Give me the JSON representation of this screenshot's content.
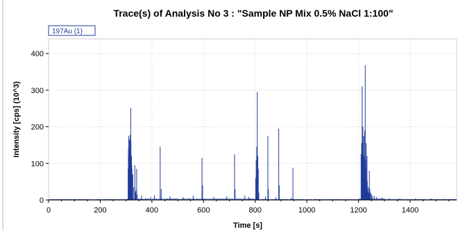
{
  "chart_data": {
    "type": "line",
    "title": "Trace(s) of Analysis No 3 : \"Sample NP Mix 0.5% NaCl 1:100\"",
    "xlabel": "Time [s]",
    "ylabel": "Intensity [cps] (10^3)",
    "xlim": [
      0,
      1580
    ],
    "ylim": [
      0,
      440
    ],
    "xticks": [
      0,
      200,
      400,
      600,
      800,
      1000,
      1200,
      1400
    ],
    "yticks": [
      0,
      100,
      200,
      300,
      400
    ],
    "grid": true,
    "legend_position": "top-left",
    "series_color": "#1f3c9a",
    "series": [
      {
        "name": "197Au (1)",
        "x": [
          308,
          309,
          310,
          311,
          312,
          313,
          314,
          315,
          316,
          317,
          318,
          319,
          320,
          321,
          322,
          323,
          324,
          325,
          326,
          330,
          334,
          336,
          338,
          341,
          343,
          360,
          395,
          410,
          432,
          436,
          470,
          520,
          560,
          594,
          596,
          640,
          690,
          720,
          722,
          760,
          775,
          802,
          804,
          806,
          808,
          810,
          812,
          814,
          840,
          849,
          851,
          880,
          891,
          893,
          940,
          946,
          1210,
          1212,
          1214,
          1215,
          1216,
          1217,
          1218,
          1219,
          1220,
          1221,
          1222,
          1223,
          1224,
          1225,
          1226,
          1227,
          1228,
          1229,
          1230,
          1231,
          1232,
          1233,
          1234,
          1236,
          1238,
          1240,
          1242,
          1244,
          1247,
          1250,
          1255,
          1262,
          1270,
          1290,
          1320,
          1360,
          1420,
          1480,
          1530
        ],
        "y": [
          85,
          140,
          175,
          120,
          95,
          165,
          140,
          110,
          178,
          130,
          252,
          160,
          110,
          120,
          95,
          85,
          70,
          60,
          70,
          35,
          95,
          20,
          25,
          85,
          15,
          12,
          8,
          12,
          145,
          30,
          10,
          8,
          12,
          115,
          40,
          8,
          10,
          125,
          30,
          12,
          8,
          60,
          110,
          145,
          295,
          120,
          85,
          20,
          10,
          175,
          30,
          8,
          195,
          40,
          6,
          88,
          125,
          155,
          310,
          120,
          160,
          200,
          140,
          90,
          175,
          120,
          60,
          95,
          190,
          150,
          368,
          110,
          85,
          70,
          155,
          60,
          35,
          120,
          50,
          25,
          35,
          20,
          80,
          30,
          20,
          15,
          12,
          10,
          8,
          6,
          5,
          5,
          4,
          4,
          3
        ]
      }
    ]
  }
}
